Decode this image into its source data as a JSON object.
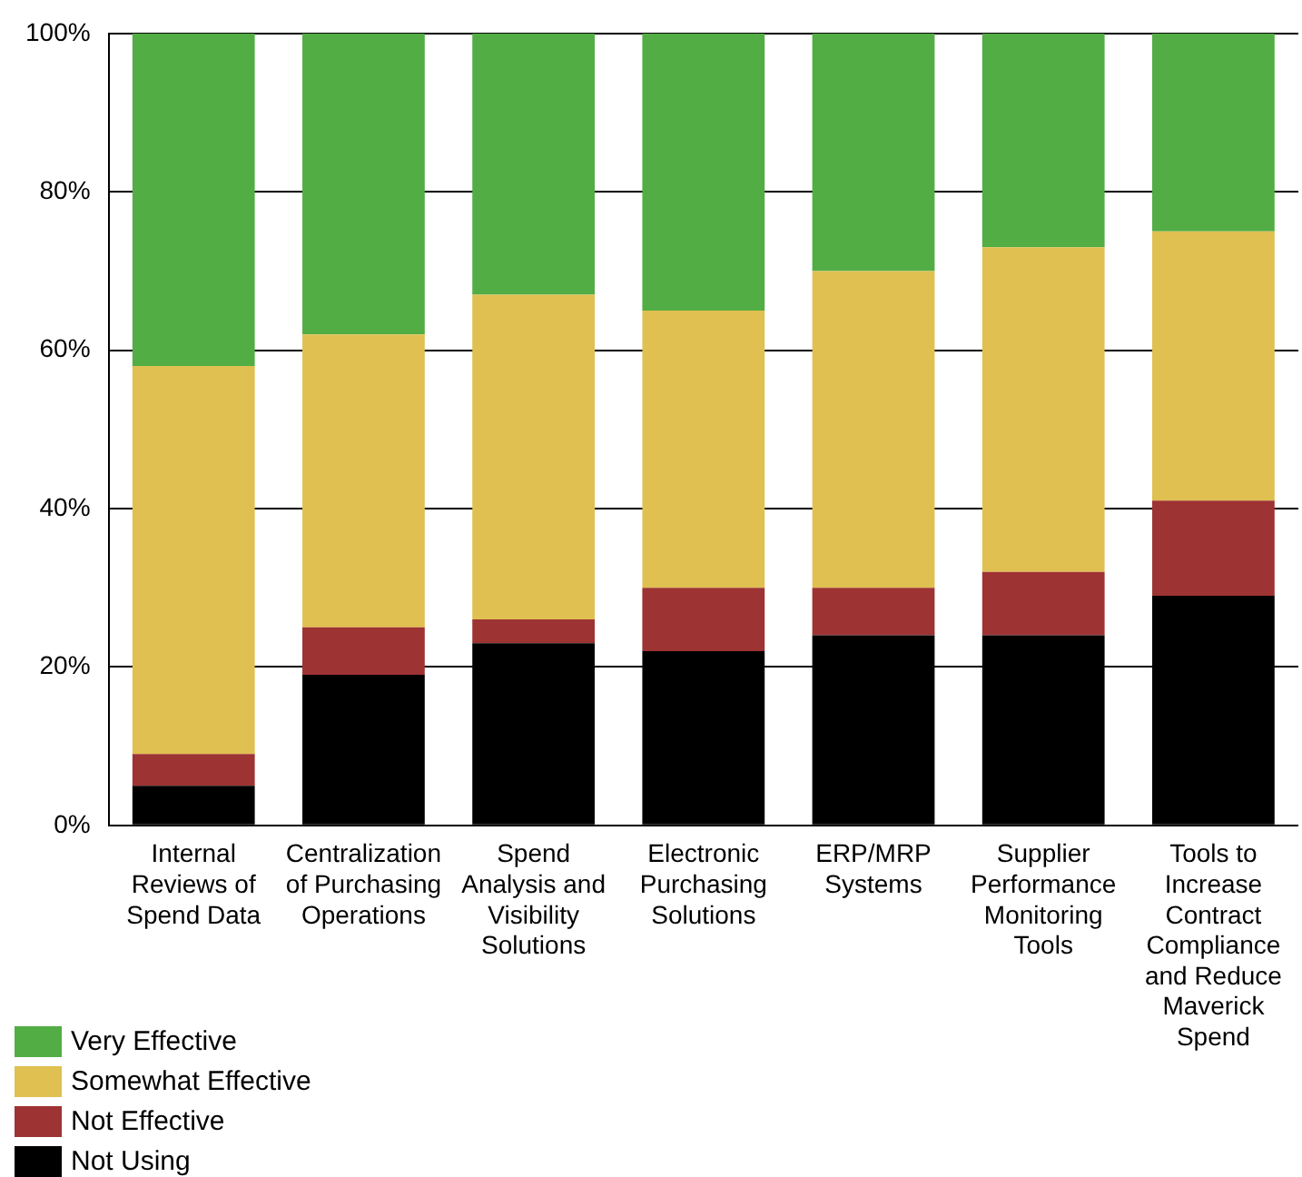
{
  "chart_data": {
    "type": "bar",
    "stacked": true,
    "categories": [
      "Internal Reviews of Spend Data",
      "Centralization of Purchasing Operations",
      "Spend Analysis and Visibility Solutions",
      "Electronic Purchasing Solutions",
      "ERP/MRP Systems",
      "Supplier Performance Monitoring Tools",
      "Tools to Increase Contract Compliance and Reduce Maverick Spend"
    ],
    "series": [
      {
        "name": "Not Using",
        "color": "#000000",
        "values": [
          5,
          19,
          23,
          22,
          24,
          24,
          29
        ]
      },
      {
        "name": "Not Effective",
        "color": "#9e3333",
        "values": [
          4,
          6,
          3,
          8,
          6,
          8,
          12
        ]
      },
      {
        "name": "Somewhat Effective",
        "color": "#e0c050",
        "values": [
          49,
          37,
          41,
          35,
          40,
          41,
          34
        ]
      },
      {
        "name": "Very Effective",
        "color": "#52ad45",
        "values": [
          42,
          38,
          33,
          35,
          30,
          27,
          25
        ]
      }
    ],
    "ylim": [
      0,
      100
    ],
    "yticks": [
      {
        "value": 0,
        "label": "0%"
      },
      {
        "value": 20,
        "label": "20%"
      },
      {
        "value": 40,
        "label": "40%"
      },
      {
        "value": 60,
        "label": "60%"
      },
      {
        "value": 80,
        "label": "80%"
      },
      {
        "value": 100,
        "label": "100%"
      }
    ],
    "grid": "y",
    "legend": "bottom left"
  }
}
